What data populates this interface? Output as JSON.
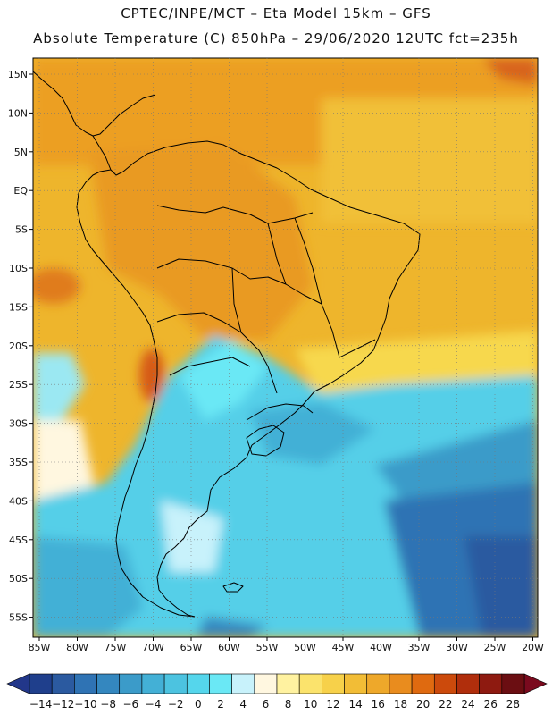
{
  "header": {
    "line1": "CPTEC/INPE/MCT –  Eta Model 15km – GFS",
    "line2": "Absolute Temperature (C) 850hPa – 29/06/2020 12UTC fct=235h"
  },
  "map": {
    "lat_labels": [
      "15N",
      "10N",
      "5N",
      "EQ",
      "5S",
      "10S",
      "15S",
      "20S",
      "25S",
      "30S",
      "35S",
      "40S",
      "45S",
      "50S",
      "55S"
    ],
    "lon_labels": [
      "85W",
      "80W",
      "75W",
      "70W",
      "65W",
      "60W",
      "55W",
      "50W",
      "45W",
      "40W",
      "35W",
      "30W",
      "25W",
      "20W"
    ]
  },
  "colorbar": {
    "labels": [
      "-14",
      "-12",
      "-10",
      "-8",
      "-6",
      "-4",
      "-2",
      "0",
      "2",
      "4",
      "6",
      "8",
      "10",
      "12",
      "14",
      "16",
      "18",
      "20",
      "22",
      "24",
      "26",
      "28"
    ],
    "colors": [
      "#1f3f8c",
      "#2b5aa0",
      "#2f73b4",
      "#3487bf",
      "#3b9bc9",
      "#43b0d6",
      "#4cc3e0",
      "#55d6ec",
      "#6ae8f5",
      "#c8f2fb",
      "#fff7e0",
      "#fff2a0",
      "#fbe36c",
      "#f7d14a",
      "#f2bd36",
      "#eea82a",
      "#e98c1e",
      "#df6a10",
      "#cc4a0c",
      "#b02e0c",
      "#8e1a10",
      "#6b0e12"
    ],
    "end_low": "#22378a",
    "end_high": "#7a0a1e"
  }
}
